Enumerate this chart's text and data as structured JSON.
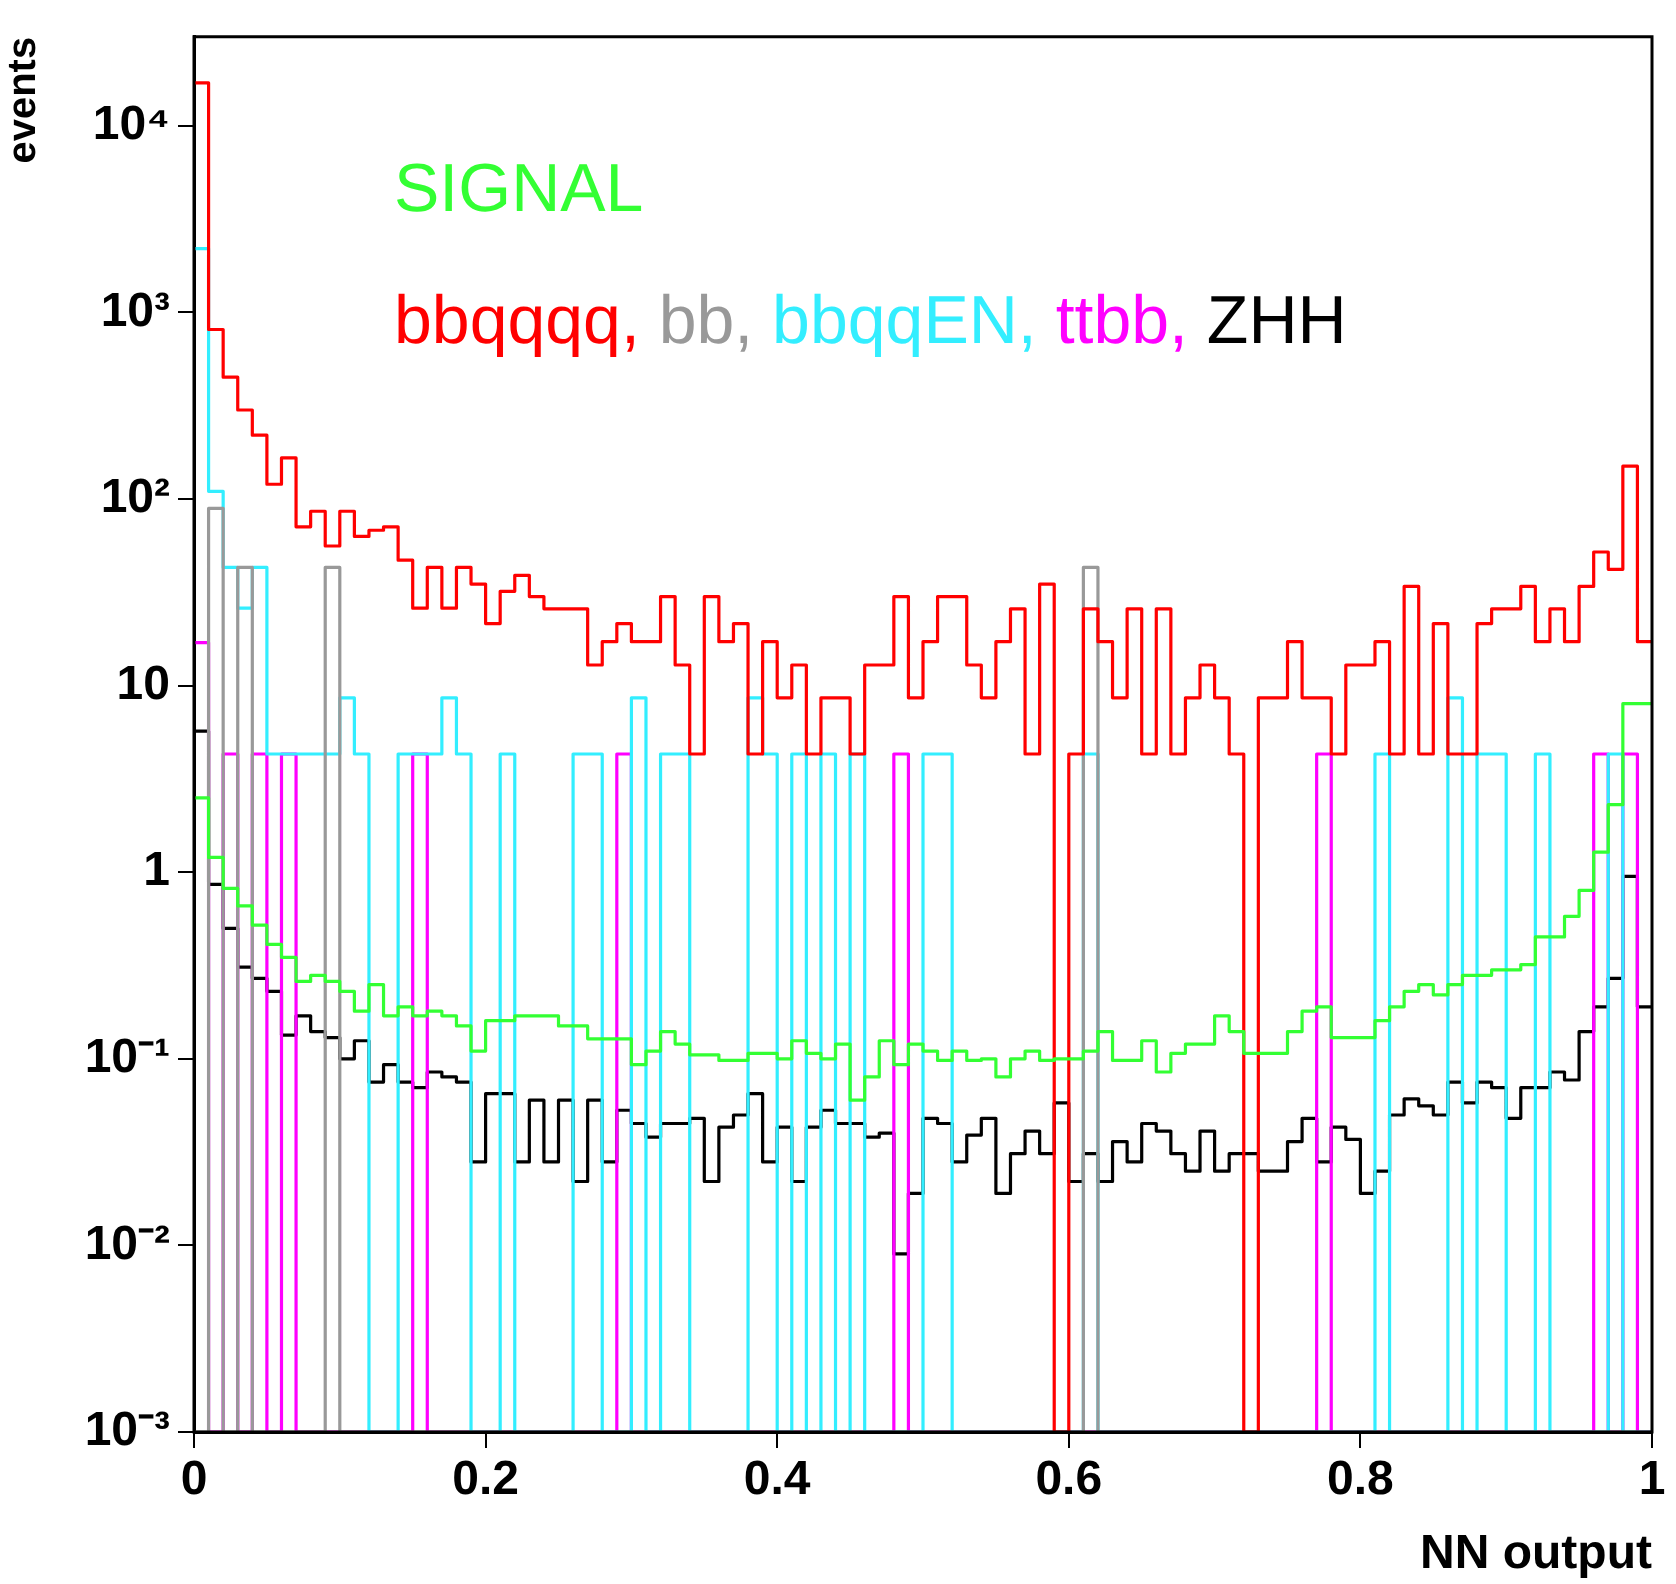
{
  "chart_data": {
    "type": "histogram",
    "xlabel": "NN output",
    "ylabel": "events",
    "log": "y",
    "legend": "top left",
    "xlim": [
      0,
      1
    ],
    "xticks": [
      0,
      0.2,
      0.4,
      0.6,
      0.8,
      1
    ],
    "ylim": [
      0.001,
      30000
    ],
    "yticks": [
      {
        "value": 0.001,
        "label": "10⁻³"
      },
      {
        "value": 0.01,
        "label": "10⁻²"
      },
      {
        "value": 0.1,
        "label": "10⁻¹"
      },
      1,
      10,
      {
        "value": 100,
        "label": "10²"
      },
      {
        "value": 1000,
        "label": "10³"
      },
      {
        "value": 10000,
        "label": "10⁴"
      }
    ],
    "bins": [
      0,
      0.01,
      0.02,
      0.03,
      0.04,
      0.05,
      0.06,
      0.07,
      0.08,
      0.09,
      0.1,
      0.11,
      0.12,
      0.13,
      0.14,
      0.15,
      0.16,
      0.17,
      0.18,
      0.19,
      0.2,
      0.21,
      0.22,
      0.23,
      0.24,
      0.25,
      0.26,
      0.27,
      0.28,
      0.29,
      0.3,
      0.31,
      0.32,
      0.33,
      0.34,
      0.35,
      0.36,
      0.37,
      0.38,
      0.39,
      0.4,
      0.41,
      0.42,
      0.43,
      0.44,
      0.45,
      0.46,
      0.47,
      0.48,
      0.49,
      0.5,
      0.51,
      0.52,
      0.53,
      0.54,
      0.55,
      0.56,
      0.57,
      0.58,
      0.59,
      0.6,
      0.61,
      0.62,
      0.63,
      0.64,
      0.65,
      0.66,
      0.67,
      0.68,
      0.69,
      0.7,
      0.71,
      0.72,
      0.73,
      0.74,
      0.75,
      0.76,
      0.77,
      0.78,
      0.79,
      0.8,
      0.81,
      0.82,
      0.83,
      0.84,
      0.85,
      0.86,
      0.87,
      0.88,
      0.89,
      0.9,
      0.91,
      0.92,
      0.93,
      0.94,
      0.95,
      0.96,
      0.97,
      0.98,
      0.99,
      1
    ],
    "series": [
      {
        "name": "SIGNAL",
        "color": "#33ff33",
        "values": [
          2.5,
          1.2,
          0.82,
          0.66,
          0.52,
          0.41,
          0.35,
          0.26,
          0.28,
          0.26,
          0.23,
          0.18,
          0.25,
          0.17,
          0.19,
          0.17,
          0.18,
          0.17,
          0.15,
          0.11,
          0.16,
          0.16,
          0.17,
          0.17,
          0.17,
          0.15,
          0.15,
          0.128,
          0.128,
          0.128,
          0.093,
          0.11,
          0.14,
          0.12,
          0.105,
          0.105,
          0.098,
          0.098,
          0.107,
          0.107,
          0.1,
          0.125,
          0.107,
          0.1,
          0.12,
          0.06,
          0.08,
          0.125,
          0.093,
          0.12,
          0.11,
          0.098,
          0.11,
          0.098,
          0.1,
          0.08,
          0.1,
          0.11,
          0.098,
          0.1,
          0.1,
          0.11,
          0.14,
          0.098,
          0.098,
          0.125,
          0.085,
          0.107,
          0.12,
          0.12,
          0.17,
          0.14,
          0.107,
          0.107,
          0.107,
          0.14,
          0.18,
          0.19,
          0.13,
          0.13,
          0.13,
          0.16,
          0.19,
          0.23,
          0.25,
          0.22,
          0.25,
          0.28,
          0.28,
          0.3,
          0.3,
          0.32,
          0.45,
          0.45,
          0.58,
          0.8,
          1.28,
          2.3,
          8,
          8
        ]
      },
      {
        "name": "bbqqqq,",
        "color": "#ff0000",
        "values": [
          17000,
          810,
          450,
          300,
          220,
          120,
          166,
          71,
          86,
          56,
          86,
          63,
          68,
          71,
          47,
          26,
          43,
          26,
          43,
          35,
          21.5,
          32,
          39,
          30,
          25.8,
          25.8,
          25.8,
          12.9,
          17.2,
          21.5,
          17.2,
          17.2,
          30,
          12.9,
          4.3,
          30,
          17.2,
          21.5,
          4.3,
          17.2,
          8.6,
          12.9,
          4.3,
          8.6,
          8.6,
          4.3,
          12.9,
          12.9,
          30,
          8.6,
          17.2,
          30,
          30,
          12.9,
          8.6,
          17.2,
          25.8,
          4.3,
          35,
          0.001,
          4.3,
          25.8,
          17.2,
          8.6,
          25.8,
          4.3,
          25.8,
          4.3,
          8.6,
          12.9,
          8.6,
          4.3,
          0.001,
          8.6,
          8.6,
          17.2,
          8.6,
          8.6,
          4.3,
          12.9,
          12.9,
          17.2,
          4.3,
          34,
          4.3,
          21.5,
          4.3,
          4.3,
          21.5,
          25.8,
          25.8,
          34,
          17.2,
          25.8,
          17.2,
          34,
          52,
          42,
          150,
          17.2
        ]
      },
      {
        "name": "bb,",
        "color": "#999999",
        "values": [
          0.001,
          89,
          0.001,
          43,
          0.001,
          0.001,
          0.001,
          0.001,
          0.001,
          43,
          0.001,
          0.001,
          0.001,
          0.001,
          0.001,
          0.001,
          0.001,
          0.001,
          0.001,
          0.001,
          0.001,
          0.001,
          0.001,
          0.001,
          0.001,
          0.001,
          0.001,
          0.001,
          0.001,
          0.001,
          0.001,
          0.001,
          0.001,
          0.001,
          0.001,
          0.001,
          0.001,
          0.001,
          0.001,
          0.001,
          0.001,
          0.001,
          0.001,
          0.001,
          0.001,
          0.001,
          0.001,
          0.001,
          0.001,
          0.001,
          0.001,
          0.001,
          0.001,
          0.001,
          0.001,
          0.001,
          0.001,
          0.001,
          0.001,
          0.001,
          0.001,
          43,
          0.001,
          0.001,
          0.001,
          0.001,
          0.001,
          0.001,
          0.001,
          0.001,
          0.001,
          0.001,
          0.001,
          0.001,
          0.001,
          0.001,
          0.001,
          0.001,
          0.001,
          0.001,
          0.001,
          0.001,
          0.001,
          0.001,
          0.001,
          0.001,
          0.001,
          0.001,
          0.001,
          0.001,
          0.001,
          0.001,
          0.001,
          0.001,
          0.001,
          0.001,
          0.001,
          0.001,
          0.001,
          0.001
        ]
      },
      {
        "name": "bbqqEN,",
        "color": "#33eeff",
        "values": [
          2200,
          110,
          43,
          26,
          43,
          4.3,
          4.3,
          4.3,
          4.3,
          4.3,
          8.6,
          4.3,
          0.001,
          0.001,
          4.3,
          4.3,
          4.3,
          8.6,
          4.3,
          0.001,
          0.001,
          4.3,
          0.001,
          0.001,
          0.001,
          0.001,
          4.3,
          4.3,
          0.001,
          0.001,
          8.6,
          0.001,
          4.3,
          4.3,
          0.001,
          0.001,
          0.001,
          0.001,
          8.6,
          4.3,
          0.001,
          4.3,
          0.001,
          4.3,
          0.001,
          4.3,
          0.001,
          0.001,
          0.001,
          0.001,
          4.3,
          4.3,
          0.001,
          0.001,
          0.001,
          0.001,
          0.001,
          0.001,
          0.001,
          0.001,
          0.001,
          4.3,
          0.001,
          0.001,
          0.001,
          0.001,
          0.001,
          0.001,
          0.001,
          0.001,
          0.001,
          0.001,
          0.001,
          0.001,
          0.001,
          0.001,
          0.001,
          0.001,
          0.001,
          0.001,
          0.001,
          4.3,
          0.001,
          0.001,
          0.001,
          0.001,
          8.6,
          0.001,
          4.3,
          4.3,
          0.001,
          0.001,
          4.3,
          0.001,
          0.001,
          0.001,
          0.001,
          4.3,
          0.001,
          0.001
        ]
      },
      {
        "name": "ttbb,",
        "color": "#ff00ff",
        "values": [
          17,
          0.001,
          4.3,
          0.001,
          4.3,
          0.001,
          4.3,
          0.001,
          0.001,
          0.001,
          0.001,
          0.001,
          0.001,
          0.001,
          0.001,
          4.3,
          0.001,
          0.001,
          0.001,
          0.001,
          0.001,
          0.001,
          0.001,
          0.001,
          0.001,
          0.001,
          0.001,
          0.001,
          0.001,
          4.3,
          0.001,
          0.001,
          0.001,
          0.001,
          0.001,
          0.001,
          0.001,
          0.001,
          0.001,
          0.001,
          0.001,
          0.001,
          0.001,
          0.001,
          0.001,
          0.001,
          0.001,
          0.001,
          4.3,
          0.001,
          0.001,
          0.001,
          0.001,
          0.001,
          0.001,
          0.001,
          0.001,
          0.001,
          0.001,
          0.001,
          0.001,
          0.001,
          0.001,
          0.001,
          0.001,
          0.001,
          0.001,
          0.001,
          0.001,
          0.001,
          0.001,
          0.001,
          0.001,
          0.001,
          0.001,
          0.001,
          0.001,
          4.3,
          0.001,
          0.001,
          0.001,
          0.001,
          0.001,
          0.001,
          0.001,
          0.001,
          0.001,
          0.001,
          0.001,
          0.001,
          0.001,
          0.001,
          0.001,
          0.001,
          0.001,
          0.001,
          4.3,
          0.001,
          4.3,
          0.001
        ]
      },
      {
        "name": "ZHH",
        "color": "#000000",
        "values": [
          5.7,
          0.86,
          0.5,
          0.31,
          0.27,
          0.23,
          0.134,
          0.17,
          0.14,
          0.13,
          0.1,
          0.125,
          0.075,
          0.093,
          0.075,
          0.07,
          0.085,
          0.08,
          0.075,
          0.028,
          0.065,
          0.065,
          0.028,
          0.06,
          0.028,
          0.06,
          0.022,
          0.06,
          0.028,
          0.053,
          0.045,
          0.038,
          0.045,
          0.045,
          0.048,
          0.022,
          0.043,
          0.05,
          0.065,
          0.028,
          0.043,
          0.022,
          0.043,
          0.053,
          0.045,
          0.045,
          0.038,
          0.04,
          0.009,
          0.019,
          0.048,
          0.045,
          0.028,
          0.039,
          0.048,
          0.019,
          0.031,
          0.041,
          0.031,
          0.058,
          0.022,
          0.031,
          0.022,
          0.036,
          0.028,
          0.045,
          0.041,
          0.031,
          0.025,
          0.041,
          0.025,
          0.031,
          0.031,
          0.025,
          0.025,
          0.036,
          0.048,
          0.028,
          0.043,
          0.037,
          0.019,
          0.025,
          0.05,
          0.061,
          0.056,
          0.05,
          0.075,
          0.058,
          0.075,
          0.07,
          0.048,
          0.07,
          0.07,
          0.085,
          0.077,
          0.14,
          0.19,
          0.27,
          0.95,
          0.19
        ]
      }
    ]
  }
}
